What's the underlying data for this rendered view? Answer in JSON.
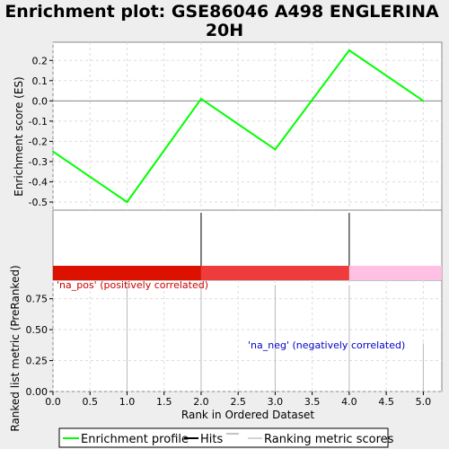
{
  "chart_data": {
    "type": "line",
    "title_line1": "Enrichment plot: GSE86046 A498 ENGLERINA",
    "title_line2": "20H",
    "enrichment": {
      "ylabel": "Enrichment score (ES)",
      "ylim": [
        -0.54,
        0.29
      ],
      "yticks": [
        "0.2",
        "0.1",
        "0.0",
        "-0.1",
        "-0.2",
        "-0.3",
        "-0.4",
        "-0.5"
      ],
      "ytick_values": [
        0.2,
        0.1,
        0.0,
        -0.1,
        -0.2,
        -0.3,
        -0.4,
        -0.5
      ],
      "x": [
        0,
        1,
        2,
        3,
        4,
        5
      ],
      "y": [
        -0.25,
        -0.5,
        0.01,
        -0.24,
        0.25,
        0.0
      ],
      "line_color": "#00ff00"
    },
    "hits": {
      "positions": [
        2,
        4
      ]
    },
    "colorbar": {
      "segments": [
        {
          "from": 0,
          "to": 2,
          "color": "#dd1100"
        },
        {
          "from": 2,
          "to": 4,
          "color": "#ee3b3b"
        },
        {
          "from": 4,
          "to": 5.25,
          "color": "#ffc0e4"
        }
      ]
    },
    "ranking": {
      "ylabel": "Ranked list metric (PreRanked)",
      "ylim": [
        0,
        0.9
      ],
      "yticks": [
        "0.75",
        "0.50",
        "0.25",
        "0.00"
      ],
      "ytick_values": [
        0.75,
        0.5,
        0.25,
        0.0
      ],
      "x": [
        1,
        2,
        3,
        4,
        5
      ],
      "values": [
        0.89,
        0.88,
        0.86,
        0.86,
        0.39
      ],
      "pos_label": "'na_pos' (positively correlated)",
      "pos_color": "#cc0000",
      "neg_label": "'na_neg' (negatively correlated)",
      "neg_color": "#0000cc"
    },
    "xaxis": {
      "xlabel": "Rank in Ordered Dataset",
      "xlim": [
        0,
        5.25
      ],
      "xticks": [
        "0.0",
        "0.5",
        "1.0",
        "1.5",
        "2.0",
        "2.5",
        "3.0",
        "3.5",
        "4.0",
        "4.5",
        "5.0"
      ],
      "xtick_values": [
        0,
        0.5,
        1,
        1.5,
        2,
        2.5,
        3,
        3.5,
        4,
        4.5,
        5
      ]
    },
    "legend": {
      "placement": "bottom",
      "items": [
        {
          "label": "Enrichment profile",
          "color": "#00ff00"
        },
        {
          "label": "Hits",
          "color": "#000000"
        },
        {
          "label": "Ranking metric scores",
          "color": "#aaaaaa"
        }
      ]
    }
  }
}
